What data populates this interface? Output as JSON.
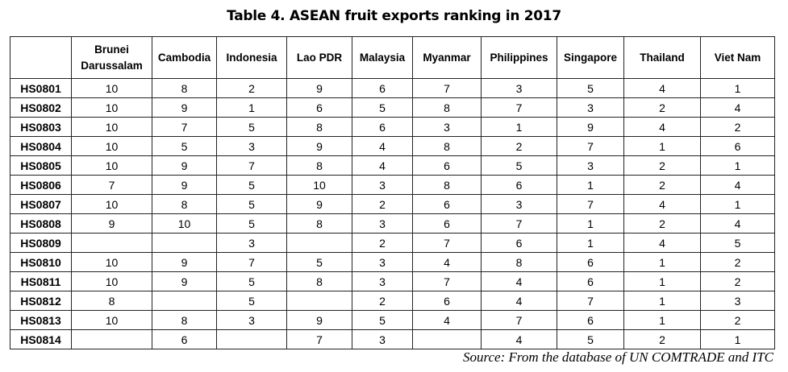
{
  "title": "Table 4. ASEAN fruit exports ranking in 2017",
  "table": {
    "columns": [
      "Brunei Darussalam",
      "Cambodia",
      "Indonesia",
      "Lao PDR",
      "Malaysia",
      "Myanmar",
      "Philippines",
      "Singapore",
      "Thailand",
      "Viet Nam"
    ],
    "rows": [
      {
        "label": "HS0801",
        "values": [
          10,
          8,
          2,
          9,
          6,
          7,
          3,
          5,
          4,
          1
        ]
      },
      {
        "label": "HS0802",
        "values": [
          10,
          9,
          1,
          6,
          5,
          8,
          7,
          3,
          2,
          4
        ]
      },
      {
        "label": "HS0803",
        "values": [
          10,
          7,
          5,
          8,
          6,
          3,
          1,
          9,
          4,
          2
        ]
      },
      {
        "label": "HS0804",
        "values": [
          10,
          5,
          3,
          9,
          4,
          8,
          2,
          7,
          1,
          6
        ]
      },
      {
        "label": "HS0805",
        "values": [
          10,
          9,
          7,
          8,
          4,
          6,
          5,
          3,
          2,
          1
        ]
      },
      {
        "label": "HS0806",
        "values": [
          7,
          9,
          5,
          10,
          3,
          8,
          6,
          1,
          2,
          4
        ]
      },
      {
        "label": "HS0807",
        "values": [
          10,
          8,
          5,
          9,
          2,
          6,
          3,
          7,
          4,
          1
        ]
      },
      {
        "label": "HS0808",
        "values": [
          9,
          10,
          5,
          8,
          3,
          6,
          7,
          1,
          2,
          4
        ]
      },
      {
        "label": "HS0809",
        "values": [
          null,
          null,
          3,
          null,
          2,
          7,
          6,
          1,
          4,
          5
        ]
      },
      {
        "label": "HS0810",
        "values": [
          10,
          9,
          7,
          5,
          3,
          4,
          8,
          6,
          1,
          2
        ]
      },
      {
        "label": "HS0811",
        "values": [
          10,
          9,
          5,
          8,
          3,
          7,
          4,
          6,
          1,
          2
        ]
      },
      {
        "label": "HS0812",
        "values": [
          8,
          null,
          5,
          null,
          2,
          6,
          4,
          7,
          1,
          3
        ]
      },
      {
        "label": "HS0813",
        "values": [
          10,
          8,
          3,
          9,
          5,
          4,
          7,
          6,
          1,
          2
        ]
      },
      {
        "label": "HS0814",
        "values": [
          null,
          6,
          null,
          7,
          3,
          null,
          4,
          5,
          2,
          1
        ]
      }
    ]
  },
  "source": "Source: From the database of UN COMTRADE and ITC"
}
